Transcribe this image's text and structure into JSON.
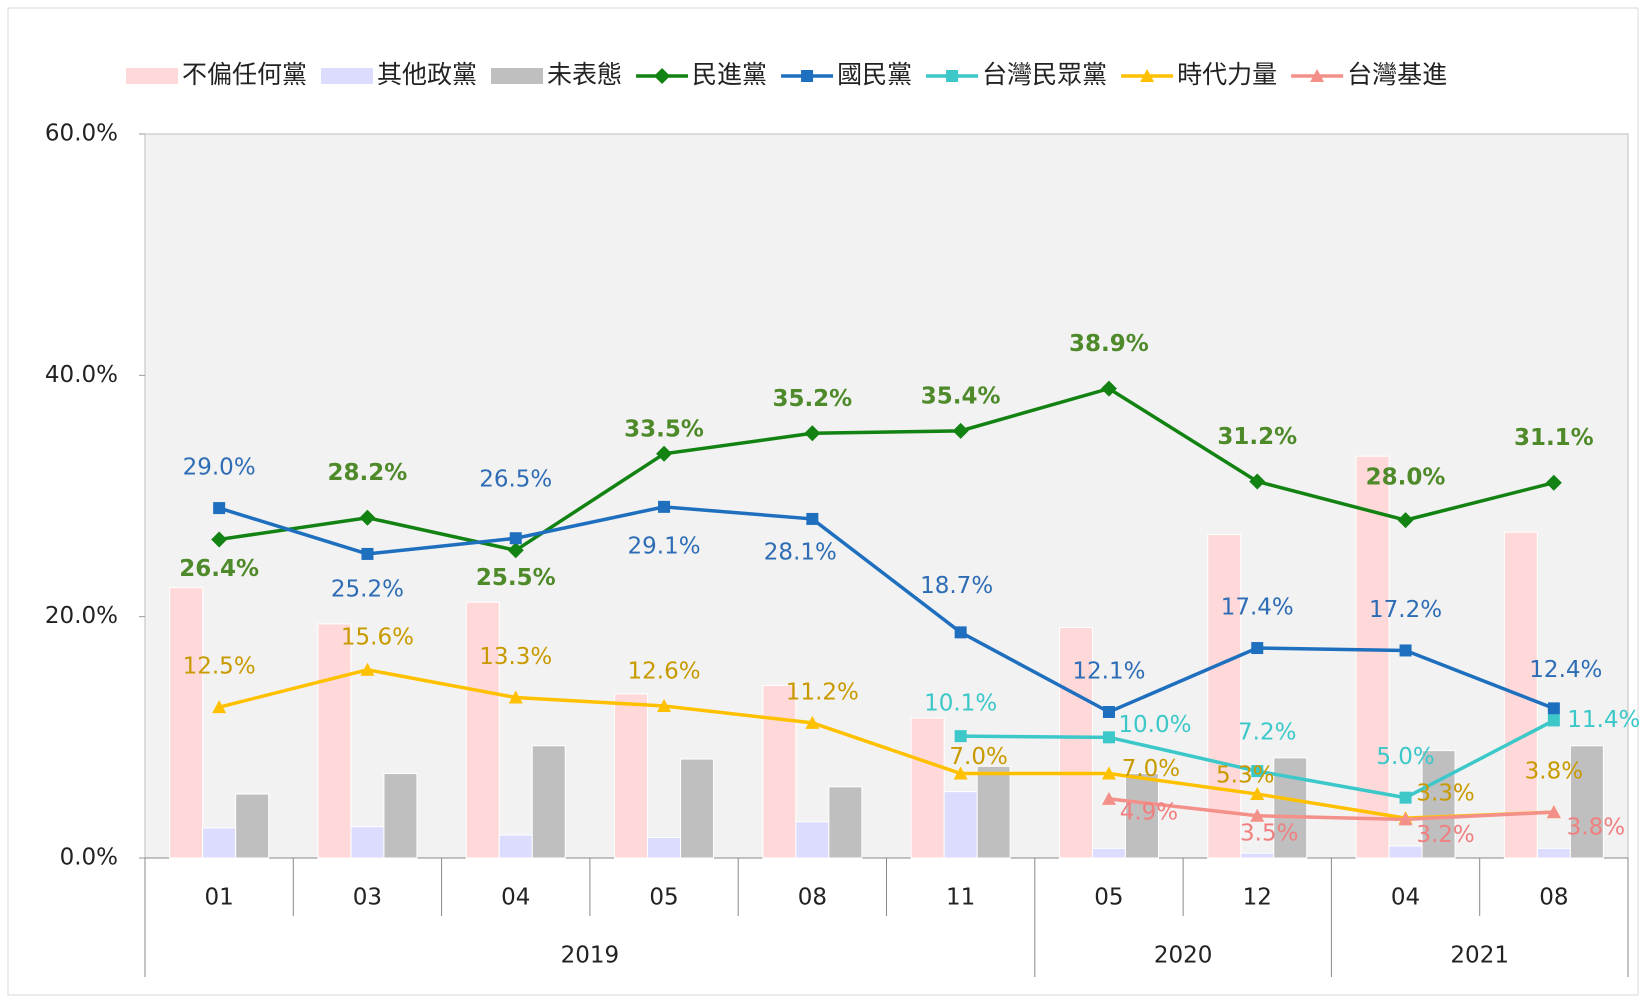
{
  "chart_data": {
    "type": "combo",
    "categories": [
      "01",
      "03",
      "04",
      "05",
      "08",
      "11",
      "05",
      "12",
      "04",
      "08"
    ],
    "year": [
      "2019",
      null,
      null,
      null,
      null,
      null,
      "2020",
      null,
      "2021",
      null
    ],
    "ylim": [
      0,
      60
    ],
    "yticks": [
      {
        "value": 0,
        "label": "0.0%"
      },
      {
        "value": 20,
        "label": "20.0%"
      },
      {
        "value": 40,
        "label": "40.0%"
      },
      {
        "value": 60,
        "label": "60.0%"
      }
    ],
    "series": [
      {
        "name": "不偏任何黨",
        "type": "bar",
        "color": "#ffd9d9",
        "values": [
          22.4,
          19.4,
          21.2,
          13.6,
          14.3,
          11.6,
          19.1,
          26.8,
          33.3,
          27.0
        ]
      },
      {
        "name": "其他政黨",
        "type": "bar",
        "color": "#dcdcff",
        "values": [
          2.5,
          2.6,
          1.9,
          1.7,
          3.0,
          5.5,
          0.8,
          0.4,
          1.0,
          0.8
        ]
      },
      {
        "name": "未表態",
        "type": "bar",
        "color": "#bfbfbf",
        "values": [
          5.3,
          7.0,
          9.3,
          8.2,
          5.9,
          7.6,
          7.0,
          8.3,
          8.9,
          9.3
        ]
      },
      {
        "name": "民進黨",
        "type": "line",
        "marker": "diamond",
        "color": "#128212",
        "label_color": "#4e8a2a",
        "values": [
          26.4,
          28.2,
          25.5,
          33.5,
          35.2,
          35.4,
          38.9,
          31.2,
          28.0,
          31.1
        ],
        "value_labels": [
          "26.4%",
          "28.2%",
          "25.5%",
          "33.5%",
          "35.2%",
          "35.4%",
          "38.9%",
          "31.2%",
          "28.0%",
          "31.1%"
        ]
      },
      {
        "name": "國民黨",
        "type": "line",
        "marker": "square",
        "color": "#1f6fbf",
        "label_color": "#2e6db5",
        "values": [
          29.0,
          25.2,
          26.5,
          29.1,
          28.1,
          18.7,
          12.1,
          17.4,
          17.2,
          12.4
        ],
        "value_labels": [
          "29.0%",
          "25.2%",
          "26.5%",
          "29.1%",
          "28.1%",
          "18.7%",
          "12.1%",
          "17.4%",
          "17.2%",
          "12.4%"
        ]
      },
      {
        "name": "台灣民眾黨",
        "type": "line",
        "marker": "square",
        "color": "#3cc8c8",
        "label_color": "#3cc8c8",
        "values": [
          null,
          null,
          null,
          null,
          null,
          10.1,
          10.0,
          7.2,
          5.0,
          11.4
        ],
        "value_labels": [
          null,
          null,
          null,
          null,
          null,
          "10.1%",
          "10.0%",
          "7.2%",
          "5.0%",
          "11.4%"
        ]
      },
      {
        "name": "時代力量",
        "type": "line",
        "marker": "triangle",
        "color": "#ffc000",
        "label_color": "#c99a00",
        "values": [
          12.5,
          15.6,
          13.3,
          12.6,
          11.2,
          7.0,
          7.0,
          5.3,
          3.3,
          3.8
        ],
        "value_labels": [
          "12.5%",
          "15.6%",
          "13.3%",
          "12.6%",
          "11.2%",
          "7.0%",
          "7.0%",
          "5.3%",
          "3.3%",
          "3.8%"
        ]
      },
      {
        "name": "台灣基進",
        "type": "line",
        "marker": "triangle",
        "color": "#f4908a",
        "label_color": "#f08080",
        "values": [
          null,
          null,
          null,
          null,
          null,
          null,
          4.9,
          3.5,
          3.2,
          3.8
        ],
        "value_labels": [
          null,
          null,
          null,
          null,
          null,
          null,
          "4.9%",
          "3.5%",
          "3.2%",
          "3.8%"
        ]
      }
    ]
  }
}
